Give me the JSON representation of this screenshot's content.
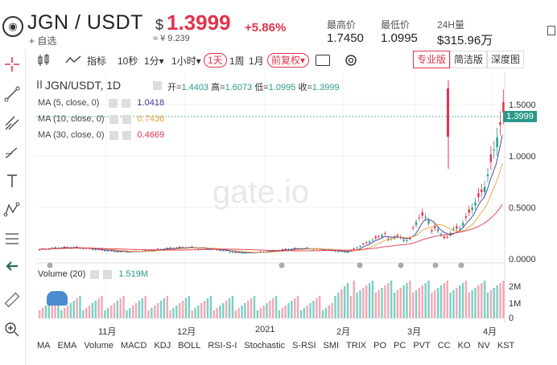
{
  "header": {
    "logo_glyph": "◉",
    "symbol": "JGN / USDT",
    "favorite_label": "+ 自选",
    "price_currency": "$",
    "price": "1.3999",
    "price_cny": "≈ ¥ 9.239",
    "change": "+5.86%",
    "high_label": "最高价",
    "high_value": "1.7450",
    "low_label": "最低价",
    "low_value": "1.0995",
    "volume_label": "24H量",
    "volume_value": "$315.96万"
  },
  "toolbar": {
    "indicator_label": "指标",
    "intervals": [
      "10秒",
      "1分▾",
      "1小时▾",
      "1天",
      "1周",
      "1月"
    ],
    "active_interval": "1天",
    "adjust_label": "前复权▾",
    "views": [
      "专业版",
      "简洁版",
      "深度图"
    ],
    "active_view": "专业版"
  },
  "chart": {
    "title": "JGN/USDT, 1D",
    "open_label": "开=",
    "open": "1.4403",
    "high_label": "高=",
    "high": "1.6073",
    "low_label": "低=",
    "low": "1.0995",
    "close_label": "收=",
    "close": "1.3999",
    "ma5_label": "MA (5, close, 0)",
    "ma5_value": "1.0418",
    "ma10_label": "MA (10, close, 0)",
    "ma10_value": "0.7436",
    "ma30_label": "MA (30, close, 0)",
    "ma30_value": "0.4669",
    "volume_label": "Volume (20)",
    "volume_value": "1.519M",
    "last_price_tag": "1.3999",
    "watermark": "gate.io",
    "colors": {
      "up": "#e0344c",
      "down": "#2a9a8a",
      "ma5": "#3a3a9a",
      "ma10": "#e8a23a",
      "ma30": "#e0344c"
    }
  },
  "chart_data": {
    "type": "candlestick",
    "price_axis": [
      "1.5000",
      "1.0000",
      "0.5000",
      "0.0000"
    ],
    "volume_axis": [
      "2M",
      "1M",
      "0"
    ],
    "x_labels": [
      "11月",
      "12月",
      "2021",
      "2月",
      "3月",
      "4月"
    ],
    "ylim": [
      0,
      1.745
    ],
    "last_close": 1.3999
  },
  "indicators": [
    "MA",
    "EMA",
    "Volume",
    "MACD",
    "KDJ",
    "BOLL",
    "RSI-S-I",
    "Stochastic",
    "S-RSI",
    "SMI",
    "TRIX",
    "PO",
    "PC",
    "PVT",
    "CC",
    "KO",
    "NV",
    "KST"
  ]
}
